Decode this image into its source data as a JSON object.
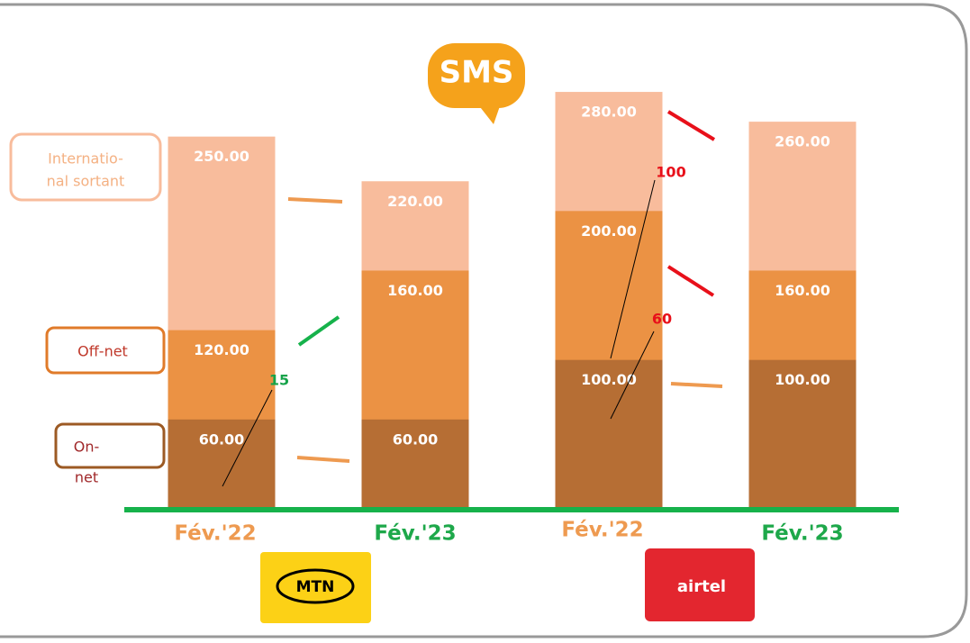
{
  "chart_data": {
    "type": "bar",
    "categories": [
      "Fév.'22",
      "Fév.'23",
      "Fév.'22",
      "Fév.'23"
    ],
    "category_colors": [
      "#ee9a50",
      "#1ea84a",
      "#ee9a50",
      "#1ea84a"
    ],
    "series": [
      {
        "name": [
          "On-",
          "net"
        ],
        "color": "#b66e34",
        "values": [
          60,
          60,
          100,
          100
        ],
        "value_labels": [
          "60.00",
          "60.00",
          "100.00",
          "100.00"
        ]
      },
      {
        "name": [
          "Off-net"
        ],
        "color": "#eb9244",
        "values": [
          120,
          160,
          200,
          160
        ],
        "value_labels": [
          "120.00",
          "160.00",
          "200.00",
          "160.00"
        ]
      },
      {
        "name": [
          "Internatio-",
          "nal sortant"
        ],
        "color": "#f8bc9c",
        "values": [
          250,
          220,
          280,
          260
        ],
        "value_labels": [
          "250.00",
          "220.00",
          "280.00",
          "260.00"
        ]
      }
    ],
    "ylim": [
      0,
      300
    ],
    "annotations": [
      "15",
      "100",
      "60"
    ],
    "logos": [
      "SMS",
      "MTN",
      "airtel"
    ]
  }
}
